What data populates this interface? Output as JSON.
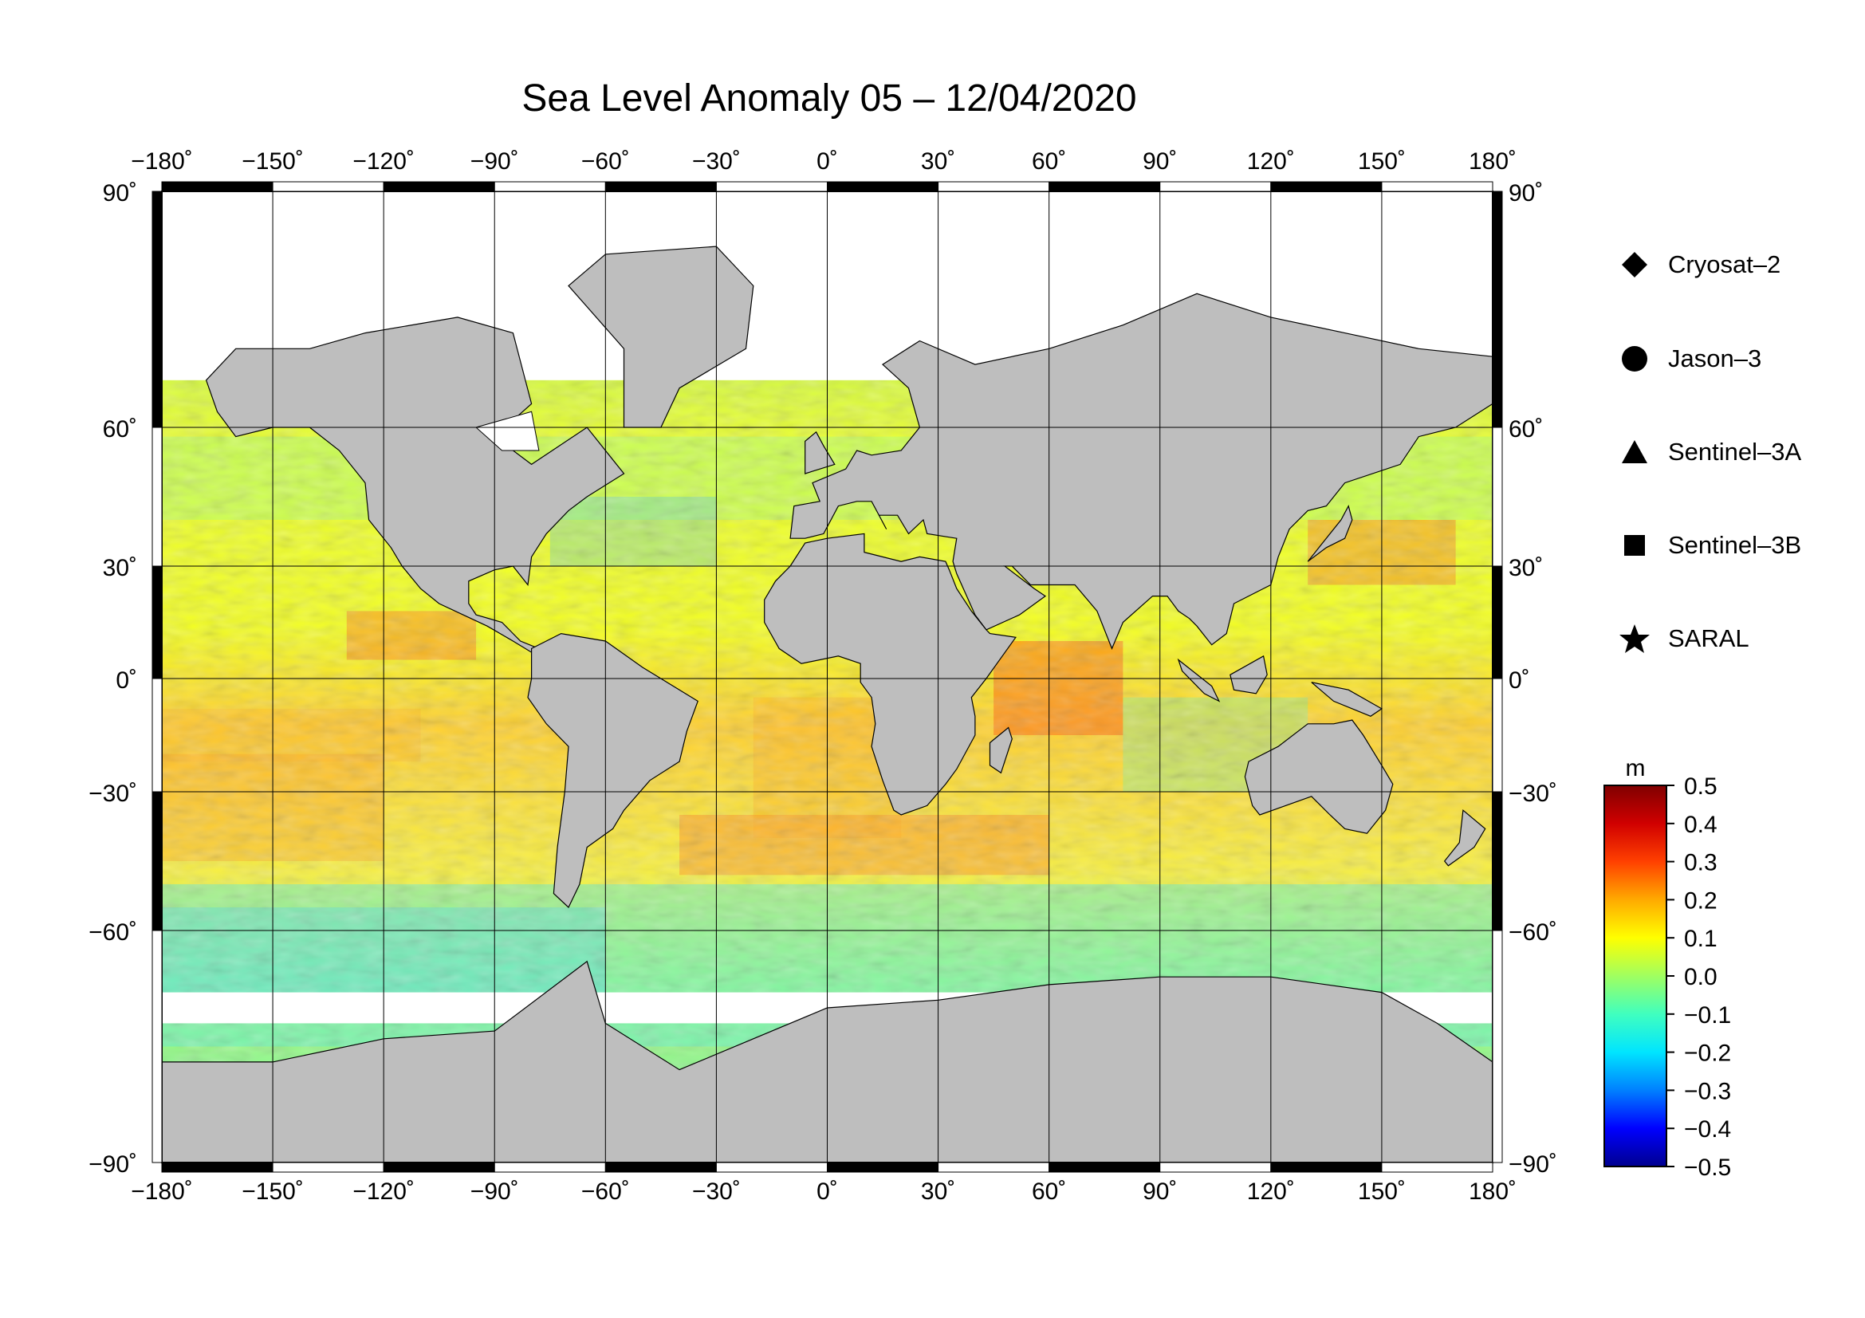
{
  "title": "Sea Level Anomaly 05 – 12/04/2020",
  "map": {
    "lon_ticks": [
      "−180˚",
      "−150˚",
      "−120˚",
      "−90˚",
      "−60˚",
      "−30˚",
      "0˚",
      "30˚",
      "60˚",
      "90˚",
      "120˚",
      "150˚",
      "180˚"
    ],
    "lat_ticks_left": [
      "90˚",
      "60˚",
      "30˚",
      "0˚",
      "−30˚",
      "−60˚",
      "−90˚"
    ],
    "lat_ticks_right": [
      "90˚",
      "60˚",
      "30˚",
      "0˚",
      "−30˚",
      "−60˚",
      "−90˚"
    ],
    "lat_values": [
      90,
      60,
      30,
      0,
      -30,
      -60,
      -90
    ],
    "lon_values": [
      -180,
      -150,
      -120,
      -90,
      -60,
      -30,
      0,
      30,
      60,
      90,
      120,
      150,
      180
    ],
    "land_color": "#bebebe",
    "ice_color": "#ffffff"
  },
  "legend": {
    "items": [
      {
        "symbol": "diamond",
        "label": "Cryosat–2"
      },
      {
        "symbol": "circle",
        "label": "Jason–3"
      },
      {
        "symbol": "triangle",
        "label": "Sentinel–3A"
      },
      {
        "symbol": "square",
        "label": "Sentinel–3B"
      },
      {
        "symbol": "star",
        "label": "SARAL"
      }
    ]
  },
  "colorbar": {
    "unit": "m",
    "ticks": [
      "0.5",
      "0.4",
      "0.3",
      "0.2",
      "0.1",
      "0.0",
      "−0.1",
      "−0.2",
      "−0.3",
      "−0.4",
      "−0.5"
    ],
    "min": -0.5,
    "max": 0.5,
    "colors": [
      "#00008f",
      "#0000ff",
      "#0080ff",
      "#00e5ff",
      "#40ffbf",
      "#a0ff60",
      "#ffff00",
      "#ffaa00",
      "#ff4000",
      "#d00000",
      "#800000"
    ]
  }
}
